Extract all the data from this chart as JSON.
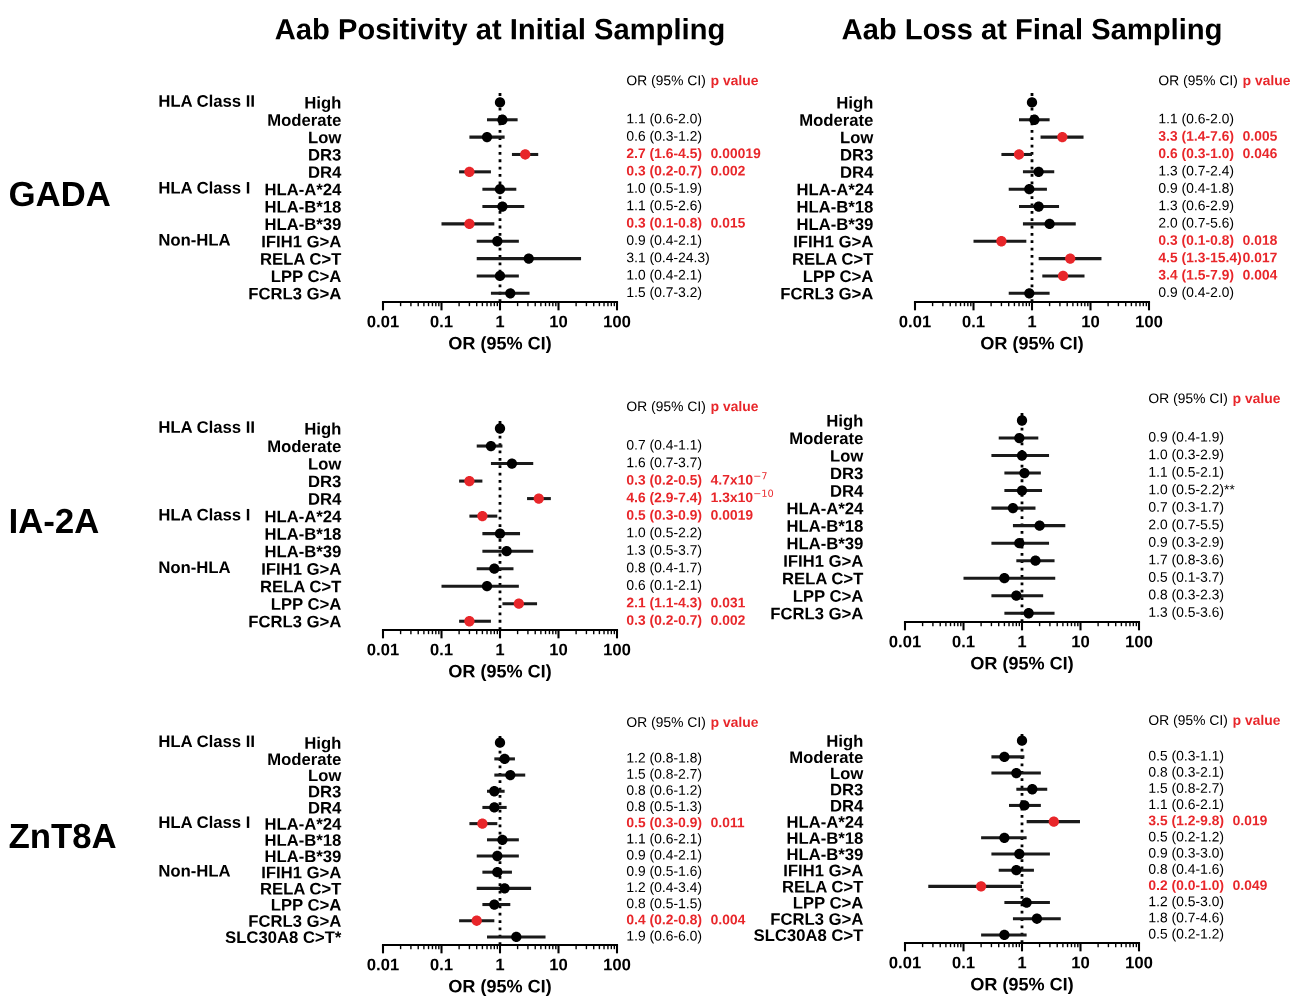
{
  "chart_data": [
    {
      "type": "scatter",
      "orientation": "horizontal",
      "title": "Aab Positivity at Initial Sampling",
      "ylabel": "GADA",
      "xlabel": "OR (95% CI)",
      "log": "x",
      "xlim": [
        0.01,
        100
      ],
      "xticks": [
        0.01,
        0.1,
        1,
        10,
        100
      ],
      "marker": "circle",
      "categories": [
        "High",
        "Moderate",
        "Low",
        "DR3",
        "DR4",
        "HLA-A*24",
        "HLA-B*18",
        "HLA-B*39",
        "IFIH1 G>A",
        "RELA C>T",
        "LPP C>A",
        "FCRL3 G>A"
      ],
      "values": [
        1,
        1.1,
        0.6,
        2.7,
        0.3,
        1.0,
        1.1,
        0.3,
        0.9,
        3.1,
        1.0,
        1.5
      ],
      "errors": [
        null,
        [
          0.6,
          2.0
        ],
        [
          0.3,
          1.2
        ],
        [
          1.6,
          4.5
        ],
        [
          0.2,
          0.7
        ],
        [
          0.5,
          1.9
        ],
        [
          0.5,
          2.6
        ],
        [
          0.1,
          0.8
        ],
        [
          0.4,
          2.1
        ],
        [
          0.4,
          24.3
        ],
        [
          0.4,
          2.1
        ],
        [
          0.7,
          3.2
        ]
      ],
      "colors": [
        "#000000",
        "#000000",
        "#000000",
        "#e8262a",
        "#e8262a",
        "#000000",
        "#000000",
        "#e8262a",
        "#000000",
        "#000000",
        "#000000",
        "#000000"
      ],
      "ref_lines": [
        {
          "axis": "x",
          "value": 1,
          "line_style": "dotted",
          "color": "#000000"
        }
      ],
      "annotations": [
        "OR (95% CI)",
        "p value",
        "HLA Class II",
        "HLA Class I",
        "Non-HLA",
        "1.1 (0.6-2.0)",
        "0.6 (0.3-1.2)",
        "2.7 (1.6-4.5)",
        "0.3 (0.2-0.7)",
        "1.0 (0.5-1.9)",
        "1.1 (0.5-2.6)",
        "0.3 (0.1-0.8)",
        "0.9 (0.4-2.1)",
        "3.1 (0.4-24.3)",
        "1.0 (0.4-2.1)",
        "1.5 (0.7-3.2)",
        "0.00019",
        "0.002",
        "0.015"
      ]
    },
    {
      "type": "scatter",
      "orientation": "horizontal",
      "title": "Aab Loss at Final Sampling",
      "xlabel": "OR (95% CI)",
      "log": "x",
      "xlim": [
        0.01,
        100
      ],
      "xticks": [
        0.01,
        0.1,
        1,
        10,
        100
      ],
      "marker": "circle",
      "categories": [
        "High",
        "Moderate",
        "Low",
        "DR3",
        "DR4",
        "HLA-A*24",
        "HLA-B*18",
        "HLA-B*39",
        "IFIH1 G>A",
        "RELA C>T",
        "LPP C>A",
        "FCRL3 G>A"
      ],
      "values": [
        1,
        1.1,
        3.3,
        0.6,
        1.3,
        0.9,
        1.3,
        2.0,
        0.3,
        4.5,
        3.4,
        0.9
      ],
      "errors": [
        null,
        [
          0.6,
          2.0
        ],
        [
          1.4,
          7.6
        ],
        [
          0.3,
          1.0
        ],
        [
          0.7,
          2.4
        ],
        [
          0.4,
          1.8
        ],
        [
          0.6,
          2.9
        ],
        [
          0.7,
          5.6
        ],
        [
          0.1,
          0.8
        ],
        [
          1.3,
          15.4
        ],
        [
          1.5,
          7.9
        ],
        [
          0.4,
          2.0
        ]
      ],
      "colors": [
        "#000000",
        "#000000",
        "#e8262a",
        "#e8262a",
        "#000000",
        "#000000",
        "#000000",
        "#000000",
        "#e8262a",
        "#e8262a",
        "#e8262a",
        "#000000"
      ],
      "ref_lines": [
        {
          "axis": "x",
          "value": 1,
          "line_style": "dotted",
          "color": "#000000"
        }
      ],
      "annotations": [
        "OR (95% CI)",
        "p value",
        "1.1 (0.6-2.0)",
        "3.3 (1.4-7.6)",
        "0.6 (0.3-1.0)",
        "1.3 (0.7-2.4)",
        "0.9 (0.4-1.8)",
        "1.3 (0.6-2.9)",
        "2.0 (0.7-5.6)",
        "0.3 (0.1-0.8)",
        "4.5 (1.3-15.4)",
        "3.4 (1.5-7.9)",
        "0.9 (0.4-2.0)",
        "0.005",
        "0.046",
        "0.018",
        "0.017",
        "0.004"
      ]
    },
    {
      "type": "scatter",
      "orientation": "horizontal",
      "ylabel": "IA-2A",
      "xlabel": "OR (95% CI)",
      "log": "x",
      "xlim": [
        0.01,
        100
      ],
      "xticks": [
        0.01,
        0.1,
        1,
        10,
        100
      ],
      "marker": "circle",
      "categories": [
        "High",
        "Moderate",
        "Low",
        "DR3",
        "DR4",
        "HLA-A*24",
        "HLA-B*18",
        "HLA-B*39",
        "IFIH1 G>A",
        "RELA C>T",
        "LPP C>A",
        "FCRL3 G>A"
      ],
      "values": [
        1,
        0.7,
        1.6,
        0.3,
        4.6,
        0.5,
        1.0,
        1.3,
        0.8,
        0.6,
        2.1,
        0.3
      ],
      "errors": [
        null,
        [
          0.4,
          1.1
        ],
        [
          0.7,
          3.7
        ],
        [
          0.2,
          0.5
        ],
        [
          2.9,
          7.4
        ],
        [
          0.3,
          0.9
        ],
        [
          0.5,
          2.2
        ],
        [
          0.5,
          3.7
        ],
        [
          0.4,
          1.7
        ],
        [
          0.1,
          2.1
        ],
        [
          1.1,
          4.3
        ],
        [
          0.2,
          0.7
        ]
      ],
      "colors": [
        "#000000",
        "#000000",
        "#000000",
        "#e8262a",
        "#e8262a",
        "#e8262a",
        "#000000",
        "#000000",
        "#000000",
        "#000000",
        "#e8262a",
        "#e8262a"
      ],
      "ref_lines": [
        {
          "axis": "x",
          "value": 1,
          "line_style": "dotted",
          "color": "#000000"
        }
      ],
      "annotations": [
        "OR (95% CI)",
        "p value",
        "HLA Class II",
        "HLA Class I",
        "Non-HLA",
        "0.7 (0.4-1.1)",
        "1.6 (0.7-3.7)",
        "0.3 (0.2-0.5)",
        "4.6 (2.9-7.4)",
        "0.5 (0.3-0.9)",
        "1.0 (0.5-2.2)",
        "1.3 (0.5-3.7)",
        "0.8 (0.4-1.7)",
        "0.6 (0.1-2.1)",
        "2.1 (1.1-4.3)",
        "0.3 (0.2-0.7)",
        "4.7x10$^{−7}$",
        "1.3x10$^{−10}$",
        "0.0019",
        "0.031",
        "0.002"
      ]
    },
    {
      "type": "scatter",
      "orientation": "horizontal",
      "xlabel": "OR (95% CI)",
      "log": "x",
      "xlim": [
        0.01,
        100
      ],
      "xticks": [
        0.01,
        0.1,
        1,
        10,
        100
      ],
      "marker": "circle",
      "categories": [
        "High",
        "Moderate",
        "Low",
        "DR3",
        "DR4",
        "HLA-A*24",
        "HLA-B*18",
        "HLA-B*39",
        "IFIH1 G>A",
        "RELA C>T",
        "LPP C>A",
        "FCRL3 G>A"
      ],
      "values": [
        1,
        0.9,
        1.0,
        1.1,
        1.0,
        0.7,
        2.0,
        0.9,
        1.7,
        0.5,
        0.8,
        1.3
      ],
      "errors": [
        null,
        [
          0.4,
          1.9
        ],
        [
          0.3,
          2.9
        ],
        [
          0.5,
          2.1
        ],
        [
          0.5,
          2.2
        ],
        [
          0.3,
          1.7
        ],
        [
          0.7,
          5.5
        ],
        [
          0.3,
          2.9
        ],
        [
          0.8,
          3.6
        ],
        [
          0.1,
          3.7
        ],
        [
          0.3,
          2.3
        ],
        [
          0.5,
          3.6
        ]
      ],
      "colors": [
        "#000000",
        "#000000",
        "#000000",
        "#000000",
        "#000000",
        "#000000",
        "#000000",
        "#000000",
        "#000000",
        "#000000",
        "#000000",
        "#000000"
      ],
      "ref_lines": [
        {
          "axis": "x",
          "value": 1,
          "line_style": "dotted",
          "color": "#000000"
        }
      ],
      "annotations": [
        "OR (95% CI)",
        "p value",
        "0.9 (0.4-1.9)",
        "1.0 (0.3-2.9)",
        "1.1 (0.5-2.1)",
        "1.0 (0.5-2.2)**",
        "0.7 (0.3-1.7)",
        "2.0 (0.7-5.5)",
        "0.9 (0.3-2.9)",
        "1.7 (0.8-3.6)",
        "0.5 (0.1-3.7)",
        "0.8 (0.3-2.3)",
        "1.3 (0.5-3.6)"
      ]
    },
    {
      "type": "scatter",
      "orientation": "horizontal",
      "ylabel": "ZnT8A",
      "xlabel": "OR (95% CI)",
      "log": "x",
      "xlim": [
        0.01,
        100
      ],
      "xticks": [
        0.01,
        0.1,
        1,
        10,
        100
      ],
      "marker": "circle",
      "categories": [
        "High",
        "Moderate",
        "Low",
        "DR3",
        "DR4",
        "HLA-A*24",
        "HLA-B*18",
        "HLA-B*39",
        "IFIH1 G>A",
        "RELA C>T",
        "LPP C>A",
        "FCRL3 G>A",
        "SLC30A8 C>T*"
      ],
      "values": [
        1,
        1.2,
        1.5,
        0.8,
        0.8,
        0.5,
        1.1,
        0.9,
        0.9,
        1.2,
        0.8,
        0.4,
        1.9
      ],
      "errors": [
        null,
        [
          0.8,
          1.8
        ],
        [
          0.8,
          2.7
        ],
        [
          0.6,
          1.2
        ],
        [
          0.5,
          1.3
        ],
        [
          0.3,
          0.9
        ],
        [
          0.6,
          2.1
        ],
        [
          0.4,
          2.1
        ],
        [
          0.5,
          1.6
        ],
        [
          0.4,
          3.4
        ],
        [
          0.5,
          1.5
        ],
        [
          0.2,
          0.8
        ],
        [
          0.6,
          6.0
        ]
      ],
      "colors": [
        "#000000",
        "#000000",
        "#000000",
        "#000000",
        "#000000",
        "#e8262a",
        "#000000",
        "#000000",
        "#000000",
        "#000000",
        "#000000",
        "#e8262a",
        "#000000"
      ],
      "ref_lines": [
        {
          "axis": "x",
          "value": 1,
          "line_style": "dotted",
          "color": "#000000"
        }
      ],
      "annotations": [
        "OR (95% CI)",
        "p value",
        "HLA Class II",
        "HLA Class I",
        "Non-HLA",
        "1.2 (0.8-1.8)",
        "1.5 (0.8-2.7)",
        "0.8 (0.6-1.2)",
        "0.8 (0.5-1.3)",
        "0.5 (0.3-0.9)",
        "1.1 (0.6-2.1)",
        "0.9 (0.4-2.1)",
        "0.9 (0.5-1.6)",
        "1.2 (0.4-3.4)",
        "0.8 (0.5-1.5)",
        "0.4 (0.2-0.8)",
        "1.9 (0.6-6.0)",
        "0.011",
        "0.004"
      ]
    },
    {
      "type": "scatter",
      "orientation": "horizontal",
      "xlabel": "OR (95% CI)",
      "log": "x",
      "xlim": [
        0.01,
        100
      ],
      "xticks": [
        0.01,
        0.1,
        1,
        10,
        100
      ],
      "marker": "circle",
      "categories": [
        "High",
        "Moderate",
        "Low",
        "DR3",
        "DR4",
        "HLA-A*24",
        "HLA-B*18",
        "HLA-B*39",
        "IFIH1 G>A",
        "RELA C>T",
        "LPP C>A",
        "FCRL3 G>A",
        "SLC30A8 C>T"
      ],
      "values": [
        1,
        0.5,
        0.8,
        1.5,
        1.1,
        3.5,
        0.5,
        0.9,
        0.8,
        0.2,
        1.2,
        1.8,
        0.5
      ],
      "errors": [
        null,
        [
          0.3,
          1.1
        ],
        [
          0.3,
          2.1
        ],
        [
          0.8,
          2.7
        ],
        [
          0.6,
          2.1
        ],
        [
          1.2,
          9.8
        ],
        [
          0.2,
          1.2
        ],
        [
          0.3,
          3.0
        ],
        [
          0.4,
          1.6
        ],
        [
          0.025,
          1.0
        ],
        [
          0.5,
          3.0
        ],
        [
          0.7,
          4.6
        ],
        [
          0.2,
          1.2
        ]
      ],
      "colors": [
        "#000000",
        "#000000",
        "#000000",
        "#000000",
        "#000000",
        "#e8262a",
        "#000000",
        "#000000",
        "#000000",
        "#e8262a",
        "#000000",
        "#000000",
        "#000000"
      ],
      "ref_lines": [
        {
          "axis": "x",
          "value": 1,
          "line_style": "dotted",
          "color": "#000000"
        }
      ],
      "annotations": [
        "OR (95% CI)",
        "p value",
        "0.5 (0.3-1.1)",
        "0.8 (0.3-2.1)",
        "1.5 (0.8-2.7)",
        "1.1 (0.6-2.1)",
        "3.5 (1.2-9.8)",
        "0.5 (0.2-1.2)",
        "0.9 (0.3-3.0)",
        "0.8 (0.4-1.6)",
        "0.2 (0.0-1.0)",
        "1.2 (0.5-3.0)",
        "1.8 (0.7-4.6)",
        "0.5 (0.2-1.2)",
        "0.019",
        "0.049"
      ]
    }
  ]
}
